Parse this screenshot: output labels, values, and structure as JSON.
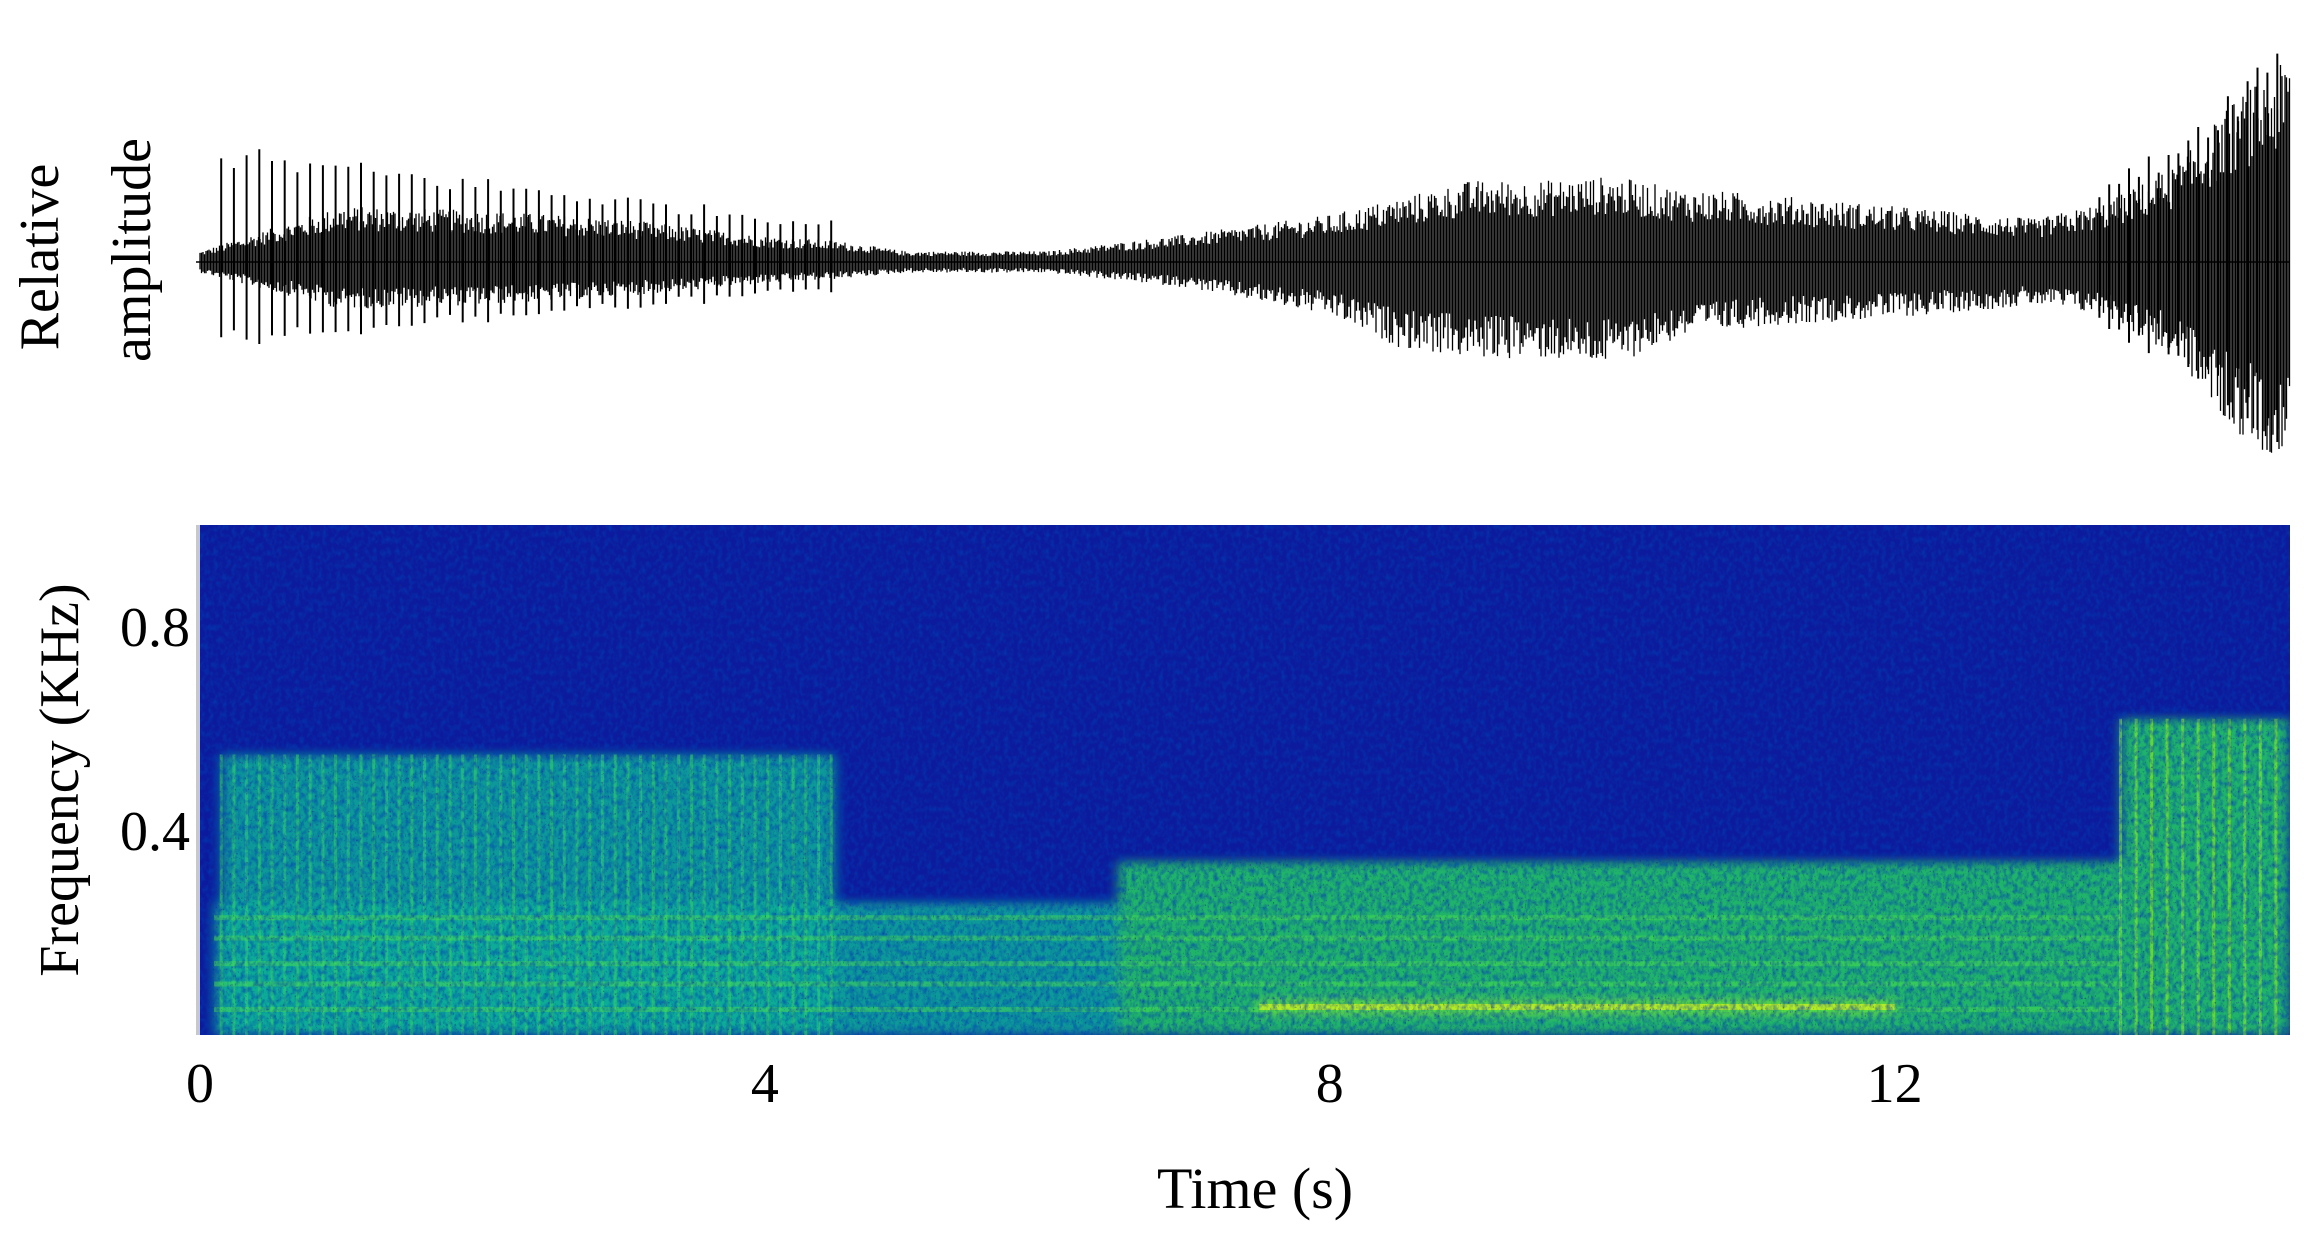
{
  "chart_data": [
    {
      "type": "line",
      "panel": "waveform",
      "ylabel_lines": [
        "Relative",
        "amplitude"
      ],
      "xlim": [
        0,
        14.8
      ],
      "ylim": [
        -1,
        1
      ],
      "series": [
        {
          "envelope": {
            "x": [
              0,
              1,
              2,
              3,
              4,
              4.5,
              5,
              6,
              7,
              8,
              8.5,
              9,
              9.5,
              10,
              10.5,
              11,
              12,
              13,
              13.5,
              14,
              14.4,
              14.8
            ],
            "upper": [
              0.05,
              0.26,
              0.24,
              0.2,
              0.12,
              0.1,
              0.05,
              0.05,
              0.13,
              0.22,
              0.3,
              0.38,
              0.38,
              0.4,
              0.34,
              0.32,
              0.26,
              0.2,
              0.28,
              0.45,
              0.75,
              0.95
            ],
            "lower": [
              -0.05,
              -0.22,
              -0.2,
              -0.16,
              -0.1,
              -0.08,
              -0.05,
              -0.05,
              -0.12,
              -0.25,
              -0.4,
              -0.45,
              -0.45,
              -0.48,
              -0.35,
              -0.3,
              -0.26,
              -0.2,
              -0.25,
              -0.45,
              -0.8,
              -0.95
            ]
          },
          "click_train": {
            "start": 0.15,
            "end": 4.5,
            "interval": 0.09,
            "peak_upper": 0.55,
            "peak_lower": -0.4
          },
          "end_spikes": {
            "start": 13.45,
            "end": 14.75,
            "interval": 0.07,
            "peak_upper": 1.1,
            "peak_lower": -0.95
          }
        }
      ]
    },
    {
      "type": "heatmap",
      "panel": "spectrogram",
      "xlabel": "Time (s)",
      "ylabel": "Frequency (KHz)",
      "xlim": [
        0,
        14.8
      ],
      "ylim": [
        0,
        1
      ],
      "xticks": [
        "0",
        "4",
        "8",
        "12"
      ],
      "xtick_values": [
        0,
        4,
        8,
        12
      ],
      "yticks": [
        "0.4",
        "0.8"
      ],
      "ytick_values": [
        0.4,
        0.8
      ],
      "colormap": [
        "#0a14a0",
        "#0044c8",
        "#0a8ac0",
        "#12b098",
        "#24d060",
        "#7cf000"
      ],
      "features": [
        {
          "name": "click train band",
          "t_start": 0.15,
          "t_end": 4.5,
          "f_low": 0.0,
          "f_high": 0.55,
          "intensity": 0.55
        },
        {
          "name": "harmonic bands",
          "t_start": 0.1,
          "t_end": 6.5,
          "f_low": 0.0,
          "f_high": 0.26,
          "intensity": 0.55
        },
        {
          "name": "low frequency energy",
          "t_start": 6.5,
          "t_end": 13.6,
          "f_low": 0.0,
          "f_high": 0.34,
          "intensity": 0.75
        },
        {
          "name": "strong tone",
          "t_start": 7.5,
          "t_end": 12.0,
          "f_low": 0.045,
          "f_high": 0.065,
          "intensity": 0.95
        },
        {
          "name": "broadband bursts",
          "t_start": 13.6,
          "t_end": 14.8,
          "f_low": 0.0,
          "f_high": 0.62,
          "intensity": 0.75
        }
      ]
    }
  ]
}
